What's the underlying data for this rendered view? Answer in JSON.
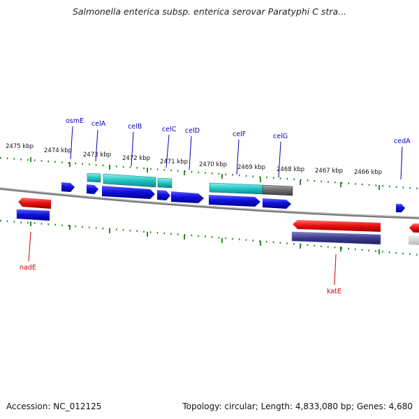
{
  "header": {
    "title": "Salmonella enterica subsp. enterica serovar Paratyphi C stra..."
  },
  "footer": {
    "accession": "Accession: NC_012125",
    "summary": "Topology: circular; Length: 4,833,080 bp; Genes: 4,680"
  },
  "map": {
    "kbp_labels": [
      "2475 kbp",
      "2474 kbp",
      "2473 kbp",
      "2472 kbp",
      "2471 kbp",
      "2470 kbp",
      "2469 kbp",
      "2468 kbp",
      "2467 kbp",
      "2466 kbp"
    ],
    "gene_labels_top": [
      "osmE",
      "celA",
      "celB",
      "celC",
      "celD",
      "celF",
      "celG",
      "cedA"
    ],
    "gene_labels_bottom": [
      "nadE",
      "katE"
    ],
    "colors": {
      "forward_gene": "#1010dd",
      "reverse_gene": "#ee1111",
      "cds_forward": "#22c4c4",
      "pseudo": "#6a6a6a",
      "cds_reverse": "#3a3a8c",
      "tick": "#1a7a1a",
      "backbone": "#808080",
      "label_top": "#0000bb",
      "label_bottom": "#cc0000"
    }
  }
}
